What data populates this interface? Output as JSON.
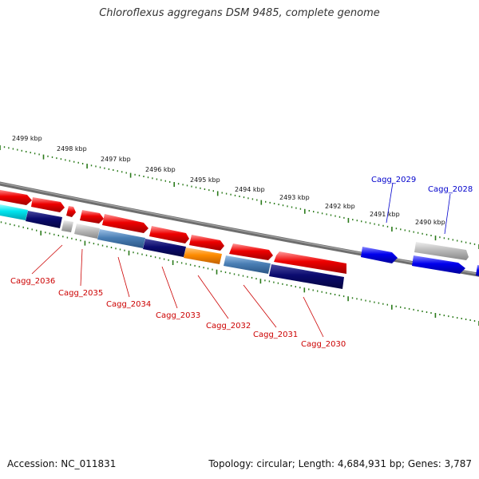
{
  "map": {
    "title": "Chloroflexus aggregans DSM 9485, complete genome",
    "footer": {
      "accession": "Accession: NC_011831",
      "summary": "Topology: circular; Length: 4,684,931 bp; Genes: 3,787"
    },
    "scale_labels": [
      "2499 kbp",
      "2498 kbp",
      "2497 kbp",
      "2496 kbp",
      "2495 kbp",
      "2494 kbp",
      "2493 kbp",
      "2492 kbp",
      "2491 kbp",
      "2490 kbp"
    ],
    "gene_labels": {
      "forward": [
        "Cagg_2029",
        "Cagg_2028"
      ],
      "reverse": [
        "Cagg_2036",
        "Cagg_2035",
        "Cagg_2034",
        "Cagg_2033",
        "Cagg_2032",
        "Cagg_2031",
        "Cagg_2030"
      ]
    },
    "colors": {
      "backbone": "#7a7a7a",
      "tick": "#2a7a1a",
      "red_feature": "#ee0000",
      "blue_feature": "#0000ee",
      "navy_feature": "#0a0a6e",
      "steel_feature": "#4a7fb5",
      "orange_feature": "#ff8c00",
      "cyan_feature": "#00e5ee",
      "gray_feature": "#bbbbbb",
      "forward_label": "#0000cc",
      "reverse_label": "#cc0000"
    }
  }
}
